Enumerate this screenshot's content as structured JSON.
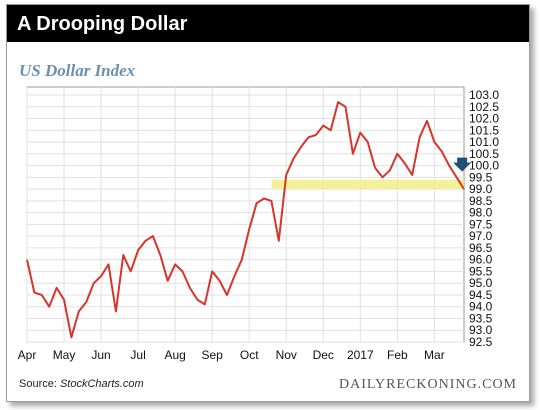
{
  "header": {
    "title": "A Drooping Dollar"
  },
  "chart_data": {
    "type": "line",
    "title": "US Dollar Index",
    "xlabel": "",
    "ylabel": "",
    "ylim": [
      92.5,
      103.0
    ],
    "y_ticks": [
      "103.0",
      "102.5",
      "102.0",
      "101.5",
      "101.0",
      "100.5",
      "100.0",
      "99.5",
      "99.0",
      "98.5",
      "98.0",
      "97.5",
      "97.0",
      "96.5",
      "96.0",
      "95.5",
      "95.0",
      "94.5",
      "94.0",
      "93.5",
      "93.0",
      "92.5"
    ],
    "x_ticks": [
      "Apr",
      "May",
      "Jun",
      "Jul",
      "Aug",
      "Sep",
      "Oct",
      "Nov",
      "Dec",
      "2017",
      "Feb",
      "Mar"
    ],
    "grid": true,
    "series_color": "#d9342b",
    "highlight_band": {
      "y_from": 99.0,
      "y_to": 99.4,
      "color": "#f3ef8f"
    },
    "arrow_color": "#1f4e79",
    "series": [
      {
        "x": [
          0.0,
          0.2,
          0.4,
          0.6,
          0.8,
          1.0,
          1.2,
          1.4,
          1.6,
          1.8,
          2.0,
          2.2,
          2.4,
          2.6,
          2.8,
          3.0,
          3.2,
          3.4,
          3.6,
          3.8,
          4.0,
          4.2,
          4.4,
          4.6,
          4.8,
          5.0,
          5.2,
          5.4,
          5.6,
          5.8,
          6.0,
          6.2,
          6.4,
          6.6,
          6.8,
          7.0,
          7.2,
          7.4,
          7.6,
          7.8,
          8.0,
          8.2,
          8.4,
          8.6,
          8.8,
          9.0,
          9.2,
          9.4,
          9.6,
          9.8,
          10.0,
          10.2,
          10.4,
          10.6,
          10.8,
          11.0,
          11.2,
          11.4,
          11.6,
          11.8
        ],
        "values": [
          96.0,
          94.6,
          94.5,
          94.0,
          94.8,
          94.3,
          92.7,
          93.8,
          94.2,
          95.0,
          95.3,
          95.8,
          93.8,
          96.2,
          95.5,
          96.4,
          96.8,
          97.0,
          96.2,
          95.1,
          95.8,
          95.5,
          94.8,
          94.3,
          94.1,
          95.5,
          95.1,
          94.5,
          95.3,
          96.0,
          97.3,
          98.4,
          98.6,
          98.5,
          96.8,
          99.6,
          100.3,
          100.8,
          101.2,
          101.3,
          101.7,
          101.5,
          102.7,
          102.5,
          100.5,
          101.4,
          101.0,
          99.9,
          99.5,
          99.8,
          100.5,
          100.1,
          99.6,
          101.2,
          101.9,
          101.0,
          100.6,
          100.0,
          99.5,
          99.0
        ]
      }
    ]
  },
  "footer": {
    "source_label": "Source: ",
    "source_name": "StockCharts.com",
    "brand": "DAILYRECKONING.COM"
  }
}
